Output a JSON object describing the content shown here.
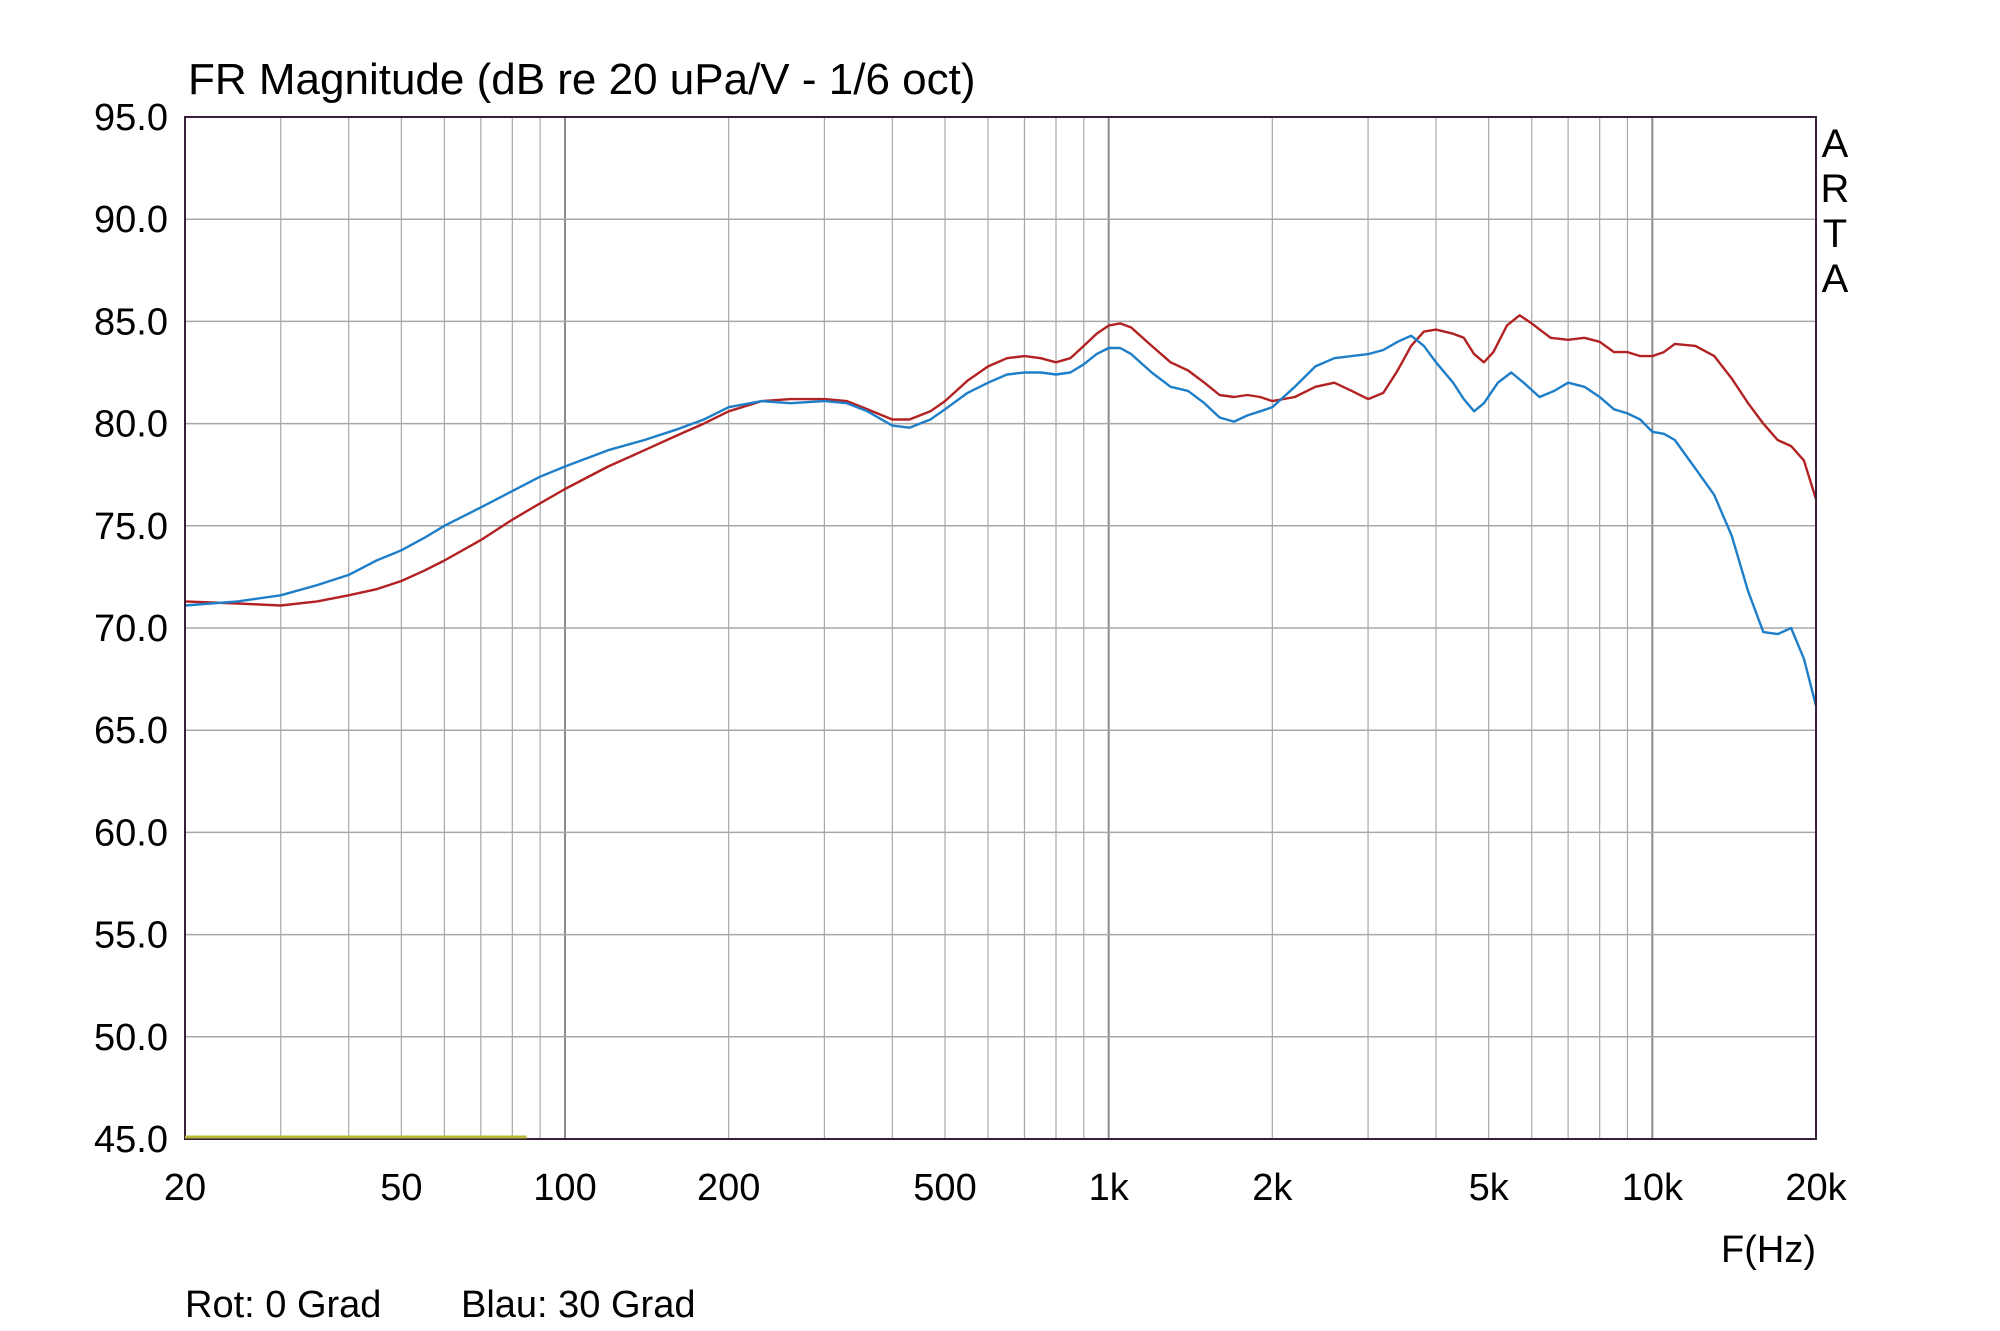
{
  "chart_data": {
    "type": "line",
    "title": "FR Magnitude (dB re 20 uPa/V - 1/6 oct)",
    "xlabel": "F(Hz)",
    "ylabel": "",
    "x_scale": "log",
    "xlim": [
      20,
      20000
    ],
    "ylim": [
      45,
      95
    ],
    "grid": true,
    "watermark": "ARTA",
    "x_ticks": [
      {
        "value": 20,
        "label": "20"
      },
      {
        "value": 50,
        "label": "50"
      },
      {
        "value": 100,
        "label": "100"
      },
      {
        "value": 200,
        "label": "200"
      },
      {
        "value": 500,
        "label": "500"
      },
      {
        "value": 1000,
        "label": "1k"
      },
      {
        "value": 2000,
        "label": "2k"
      },
      {
        "value": 5000,
        "label": "5k"
      },
      {
        "value": 10000,
        "label": "10k"
      },
      {
        "value": 20000,
        "label": "20k"
      }
    ],
    "y_ticks": [
      {
        "value": 95,
        "label": "95.0"
      },
      {
        "value": 90,
        "label": "90.0"
      },
      {
        "value": 85,
        "label": "85.0"
      },
      {
        "value": 80,
        "label": "80.0"
      },
      {
        "value": 75,
        "label": "75.0"
      },
      {
        "value": 70,
        "label": "70.0"
      },
      {
        "value": 65,
        "label": "65.0"
      },
      {
        "value": 60,
        "label": "60.0"
      },
      {
        "value": 55,
        "label": "55.0"
      },
      {
        "value": 50,
        "label": "50.0"
      },
      {
        "value": 45,
        "label": "45.0"
      }
    ],
    "series": [
      {
        "color": "#b22222",
        "points": [
          [
            20,
            71.3
          ],
          [
            25,
            71.2
          ],
          [
            30,
            71.1
          ],
          [
            35,
            71.3
          ],
          [
            40,
            71.6
          ],
          [
            45,
            71.9
          ],
          [
            50,
            72.3
          ],
          [
            55,
            72.8
          ],
          [
            60,
            73.3
          ],
          [
            70,
            74.3
          ],
          [
            80,
            75.3
          ],
          [
            90,
            76.1
          ],
          [
            100,
            76.8
          ],
          [
            120,
            77.9
          ],
          [
            140,
            78.7
          ],
          [
            160,
            79.4
          ],
          [
            180,
            80.0
          ],
          [
            200,
            80.6
          ],
          [
            230,
            81.1
          ],
          [
            260,
            81.2
          ],
          [
            300,
            81.2
          ],
          [
            330,
            81.1
          ],
          [
            360,
            80.7
          ],
          [
            400,
            80.2
          ],
          [
            430,
            80.2
          ],
          [
            470,
            80.6
          ],
          [
            500,
            81.1
          ],
          [
            550,
            82.1
          ],
          [
            600,
            82.8
          ],
          [
            650,
            83.2
          ],
          [
            700,
            83.3
          ],
          [
            750,
            83.2
          ],
          [
            800,
            83.0
          ],
          [
            850,
            83.2
          ],
          [
            900,
            83.8
          ],
          [
            950,
            84.4
          ],
          [
            1000,
            84.8
          ],
          [
            1050,
            84.9
          ],
          [
            1100,
            84.7
          ],
          [
            1200,
            83.8
          ],
          [
            1300,
            83.0
          ],
          [
            1400,
            82.6
          ],
          [
            1500,
            82.0
          ],
          [
            1600,
            81.4
          ],
          [
            1700,
            81.3
          ],
          [
            1800,
            81.4
          ],
          [
            1900,
            81.3
          ],
          [
            2000,
            81.1
          ],
          [
            2200,
            81.3
          ],
          [
            2400,
            81.8
          ],
          [
            2600,
            82.0
          ],
          [
            2800,
            81.6
          ],
          [
            3000,
            81.2
          ],
          [
            3200,
            81.5
          ],
          [
            3400,
            82.6
          ],
          [
            3600,
            83.8
          ],
          [
            3800,
            84.5
          ],
          [
            4000,
            84.6
          ],
          [
            4300,
            84.4
          ],
          [
            4500,
            84.2
          ],
          [
            4700,
            83.4
          ],
          [
            4900,
            83.0
          ],
          [
            5100,
            83.5
          ],
          [
            5400,
            84.8
          ],
          [
            5700,
            85.3
          ],
          [
            6000,
            84.9
          ],
          [
            6500,
            84.2
          ],
          [
            7000,
            84.1
          ],
          [
            7500,
            84.2
          ],
          [
            8000,
            84.0
          ],
          [
            8500,
            83.5
          ],
          [
            9000,
            83.5
          ],
          [
            9500,
            83.3
          ],
          [
            10000,
            83.3
          ],
          [
            10500,
            83.5
          ],
          [
            11000,
            83.9
          ],
          [
            12000,
            83.8
          ],
          [
            13000,
            83.3
          ],
          [
            14000,
            82.2
          ],
          [
            15000,
            81.0
          ],
          [
            16000,
            80.0
          ],
          [
            17000,
            79.2
          ],
          [
            18000,
            78.9
          ],
          [
            19000,
            78.2
          ],
          [
            20000,
            76.3
          ]
        ]
      },
      {
        "color": "#1e7ec8",
        "points": [
          [
            20,
            71.1
          ],
          [
            25,
            71.3
          ],
          [
            30,
            71.6
          ],
          [
            35,
            72.1
          ],
          [
            40,
            72.6
          ],
          [
            45,
            73.3
          ],
          [
            50,
            73.8
          ],
          [
            55,
            74.4
          ],
          [
            60,
            75.0
          ],
          [
            70,
            75.9
          ],
          [
            80,
            76.7
          ],
          [
            90,
            77.4
          ],
          [
            100,
            77.9
          ],
          [
            120,
            78.7
          ],
          [
            140,
            79.2
          ],
          [
            160,
            79.7
          ],
          [
            180,
            80.2
          ],
          [
            200,
            80.8
          ],
          [
            230,
            81.1
          ],
          [
            260,
            81.0
          ],
          [
            300,
            81.1
          ],
          [
            330,
            81.0
          ],
          [
            360,
            80.6
          ],
          [
            400,
            79.9
          ],
          [
            430,
            79.8
          ],
          [
            470,
            80.2
          ],
          [
            500,
            80.7
          ],
          [
            550,
            81.5
          ],
          [
            600,
            82.0
          ],
          [
            650,
            82.4
          ],
          [
            700,
            82.5
          ],
          [
            750,
            82.5
          ],
          [
            800,
            82.4
          ],
          [
            850,
            82.5
          ],
          [
            900,
            82.9
          ],
          [
            950,
            83.4
          ],
          [
            1000,
            83.7
          ],
          [
            1050,
            83.7
          ],
          [
            1100,
            83.4
          ],
          [
            1200,
            82.5
          ],
          [
            1300,
            81.8
          ],
          [
            1400,
            81.6
          ],
          [
            1500,
            81.0
          ],
          [
            1600,
            80.3
          ],
          [
            1700,
            80.1
          ],
          [
            1800,
            80.4
          ],
          [
            1900,
            80.6
          ],
          [
            2000,
            80.8
          ],
          [
            2200,
            81.8
          ],
          [
            2400,
            82.8
          ],
          [
            2600,
            83.2
          ],
          [
            2800,
            83.3
          ],
          [
            3000,
            83.4
          ],
          [
            3200,
            83.6
          ],
          [
            3400,
            84.0
          ],
          [
            3600,
            84.3
          ],
          [
            3800,
            83.8
          ],
          [
            4000,
            83.0
          ],
          [
            4300,
            82.0
          ],
          [
            4500,
            81.2
          ],
          [
            4700,
            80.6
          ],
          [
            4900,
            81.0
          ],
          [
            5200,
            82.0
          ],
          [
            5500,
            82.5
          ],
          [
            5800,
            82.0
          ],
          [
            6200,
            81.3
          ],
          [
            6600,
            81.6
          ],
          [
            7000,
            82.0
          ],
          [
            7500,
            81.8
          ],
          [
            8000,
            81.3
          ],
          [
            8500,
            80.7
          ],
          [
            9000,
            80.5
          ],
          [
            9500,
            80.2
          ],
          [
            10000,
            79.6
          ],
          [
            10500,
            79.5
          ],
          [
            11000,
            79.2
          ],
          [
            12000,
            77.8
          ],
          [
            13000,
            76.5
          ],
          [
            14000,
            74.5
          ],
          [
            15000,
            71.8
          ],
          [
            16000,
            69.8
          ],
          [
            17000,
            69.7
          ],
          [
            18000,
            70.0
          ],
          [
            19000,
            68.5
          ],
          [
            20000,
            66.2
          ]
        ]
      }
    ],
    "footer": {
      "left": "Rot: 0 Grad",
      "right": "Blau: 30 Grad"
    },
    "colors": {
      "grid": "#a8a8a8",
      "frame": "#3a1f3a",
      "marker": "#b8b838"
    }
  }
}
